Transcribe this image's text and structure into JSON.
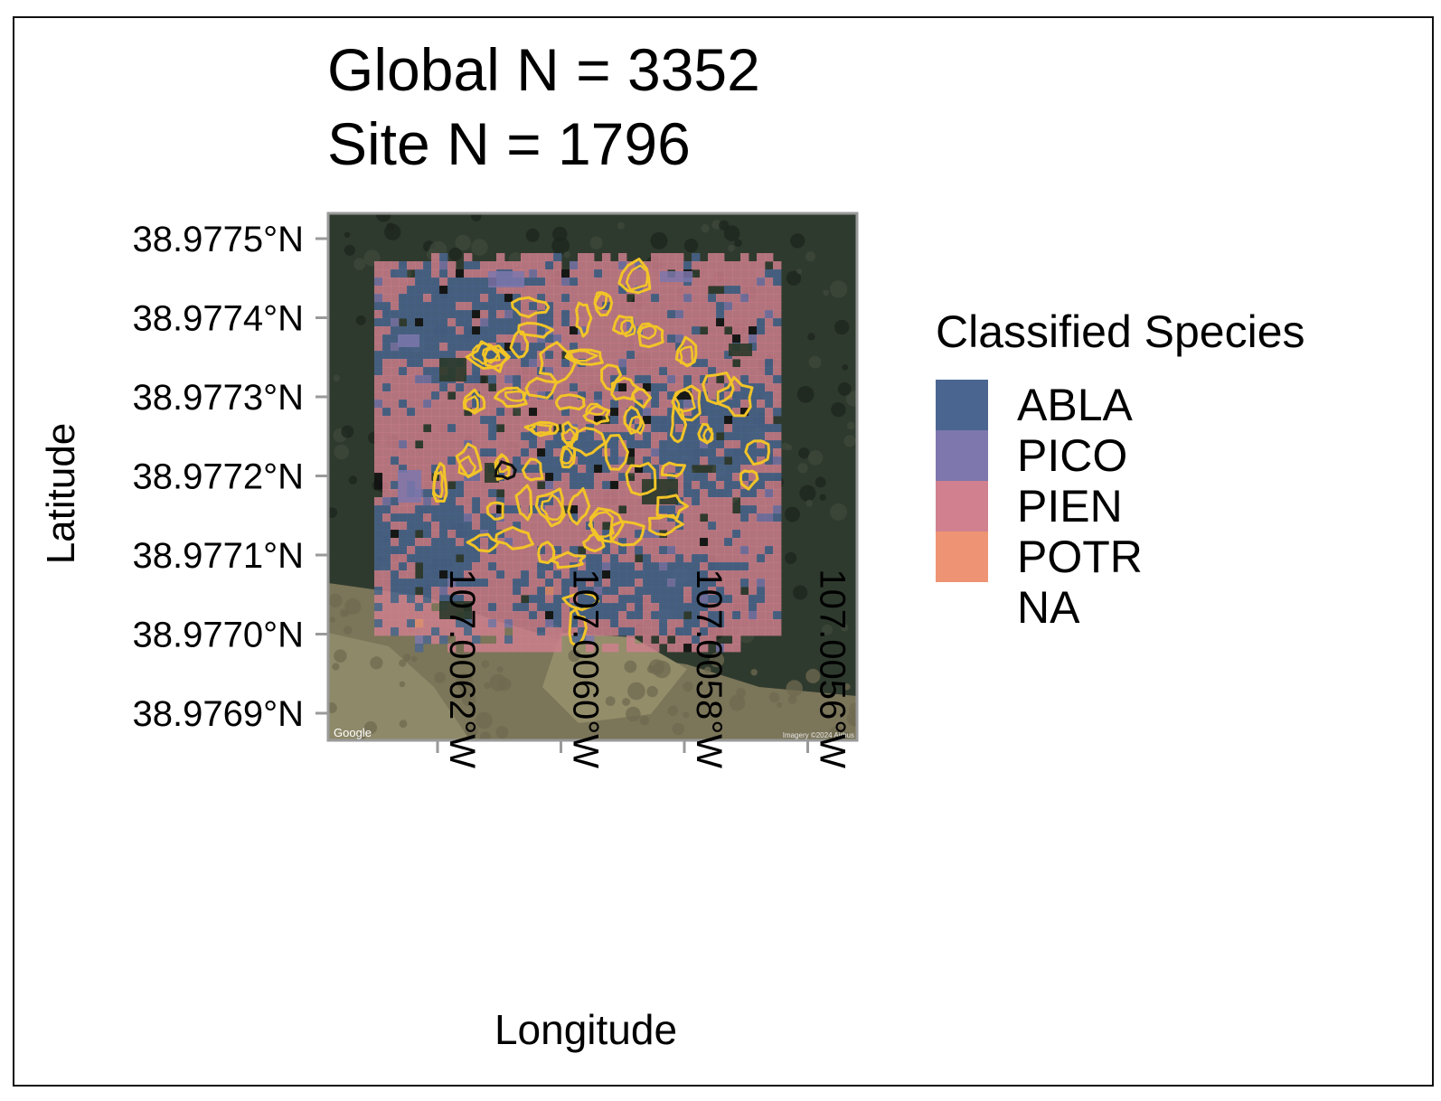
{
  "chart": {
    "title_line1": "Global N = 3352",
    "title_line2": "Site N = 1796",
    "xlabel": "Longitude",
    "ylabel": "Latitude",
    "lat_ticks": [
      "38.9775°N",
      "38.9774°N",
      "38.9773°N",
      "38.9772°N",
      "38.9771°N",
      "38.9770°N",
      "38.9769°N"
    ],
    "lon_ticks": [
      "107.0062°W",
      "107.0060°W",
      "107.0058°W",
      "107.0056°W"
    ],
    "basemap_credit": "Google",
    "imagery_credit": "Imagery ©2024 Airbus"
  },
  "legend": {
    "title": "Classified Species",
    "items": [
      {
        "label": "ABLA",
        "color": "#4a6690"
      },
      {
        "label": "PICO",
        "color": "#7d77ad"
      },
      {
        "label": "PIEN",
        "color": "#d0808e"
      },
      {
        "label": "POTR",
        "color": "#ee9474"
      },
      {
        "label": "NA",
        "color": null
      }
    ]
  },
  "colors": {
    "crown_outline": "#f2c428",
    "basemap_forest": "#2f3a2e",
    "basemap_clearing": "#8a8568",
    "axis_tick": "#9a9a9a",
    "frame": "#111111"
  }
}
